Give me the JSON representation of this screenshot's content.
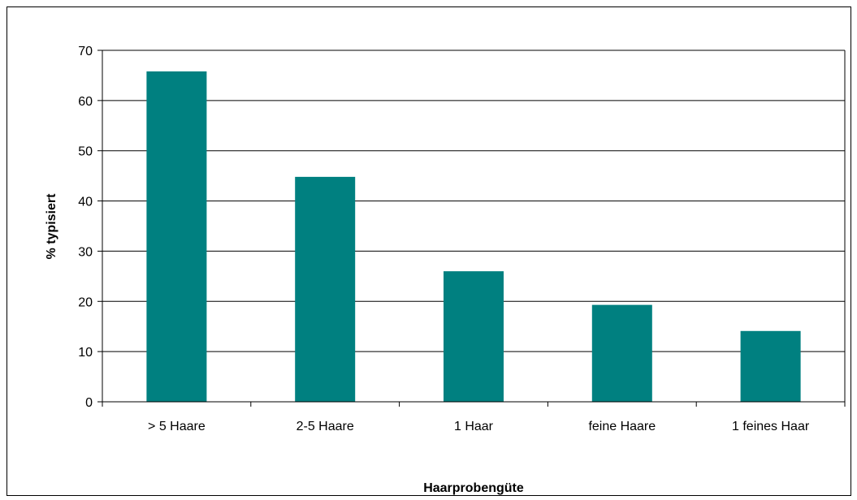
{
  "chart_data": {
    "type": "bar",
    "title": "",
    "xlabel": "Haarprobengüte",
    "ylabel": "% typisiert",
    "categories": [
      "> 5 Haare",
      "2-5 Haare",
      "1 Haar",
      "feine Haare",
      "1 feines Haar"
    ],
    "values": [
      65.8,
      44.8,
      26.0,
      19.3,
      14.1
    ],
    "ylim": [
      0,
      70
    ],
    "yticks": [
      0,
      10,
      20,
      30,
      40,
      50,
      60,
      70
    ],
    "grid": true,
    "legend": "none",
    "bar_color": "#008080"
  }
}
